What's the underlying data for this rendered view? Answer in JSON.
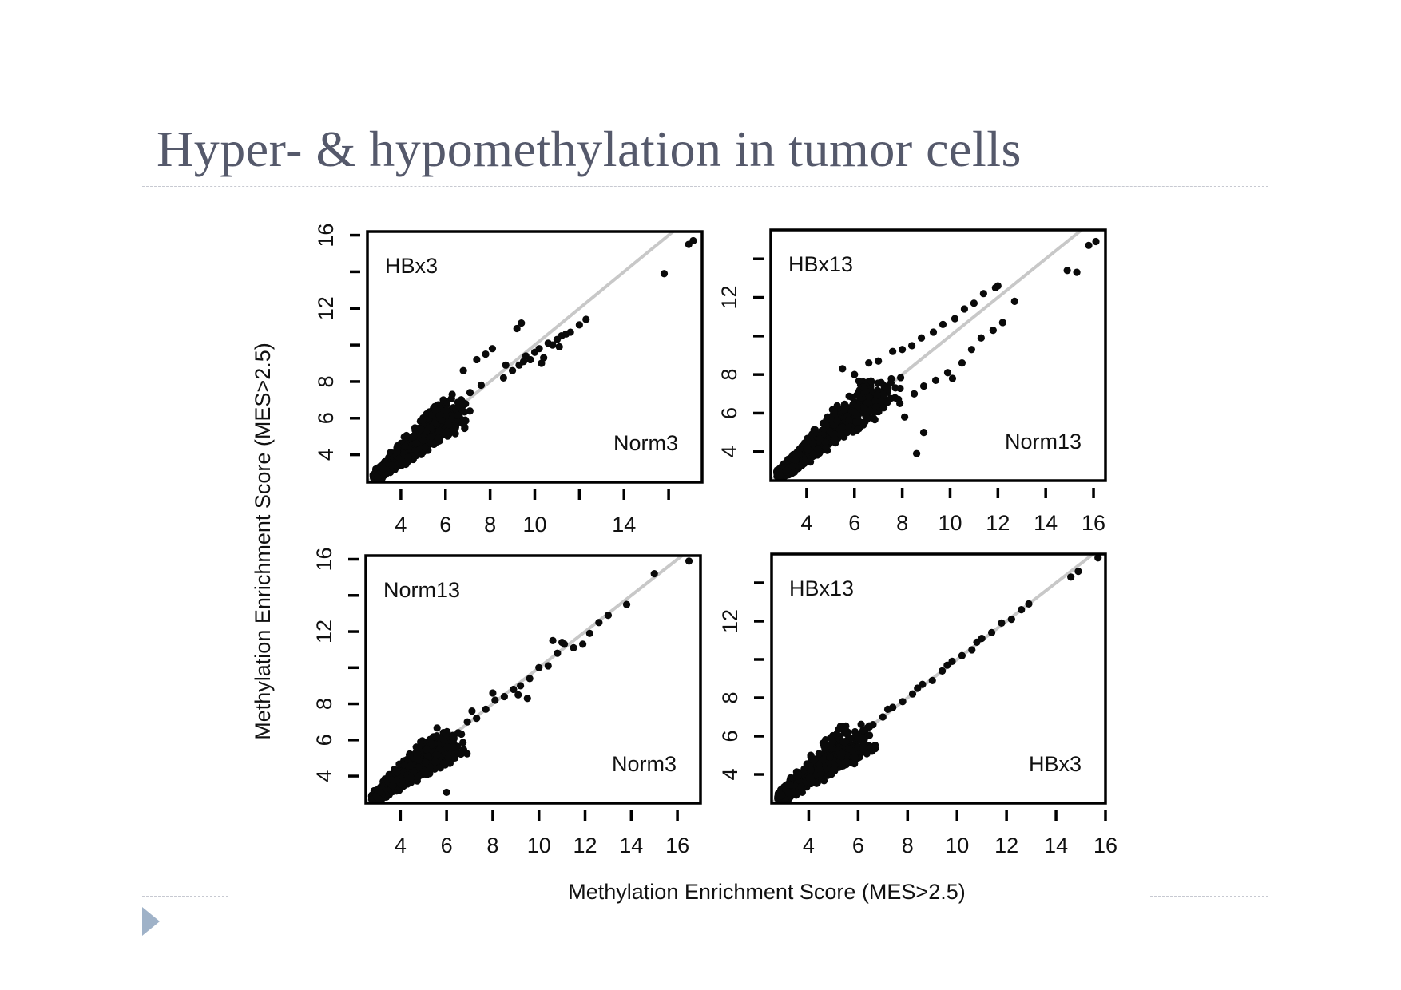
{
  "slide": {
    "title": "Hyper- & hypomethylation in tumor cells",
    "accent_color": "#9fb2c8",
    "title_color": "#55596b"
  },
  "chart_data": [
    {
      "type": "scatter",
      "panel": "top-left",
      "y_label": "HBx3",
      "x_label": "Norm3",
      "xlim": [
        2.5,
        17.5
      ],
      "ylim": [
        2.5,
        16.2
      ],
      "x_ticks": [
        4,
        6,
        8,
        10,
        12,
        14,
        16
      ],
      "x_tick_labels": [
        "4",
        "6",
        "8",
        "10",
        "14"
      ],
      "x_tick_labels_at": [
        4,
        6,
        8,
        10,
        14
      ],
      "y_ticks": [
        4,
        6,
        8,
        10,
        12,
        14,
        16
      ],
      "y_tick_labels": [
        "4",
        "6",
        "8",
        "12",
        "16"
      ],
      "y_tick_labels_at": [
        4,
        6,
        8,
        12,
        16
      ],
      "diagonal": true,
      "cluster": {
        "x_range": [
          2.8,
          6.5
        ],
        "y_range": [
          2.7,
          6.5
        ]
      },
      "points": [
        [
          7.4,
          9.2
        ],
        [
          6.8,
          8.6
        ],
        [
          7.8,
          9.5
        ],
        [
          8.1,
          9.8
        ],
        [
          8.6,
          8.2
        ],
        [
          9.0,
          8.6
        ],
        [
          9.3,
          8.9
        ],
        [
          9.5,
          9.1
        ],
        [
          9.6,
          9.4
        ],
        [
          9.8,
          9.2
        ],
        [
          10.0,
          9.6
        ],
        [
          10.2,
          9.8
        ],
        [
          10.4,
          9.3
        ],
        [
          10.6,
          10.1
        ],
        [
          10.8,
          10.0
        ],
        [
          11.0,
          10.3
        ],
        [
          11.2,
          10.5
        ],
        [
          11.4,
          10.6
        ],
        [
          11.6,
          10.7
        ],
        [
          12.0,
          11.1
        ],
        [
          12.3,
          11.4
        ],
        [
          9.2,
          10.9
        ],
        [
          9.4,
          11.2
        ],
        [
          8.7,
          8.9
        ],
        [
          10.3,
          9.0
        ],
        [
          11.1,
          9.9
        ],
        [
          15.8,
          13.9
        ],
        [
          16.9,
          15.5
        ],
        [
          17.1,
          15.7
        ],
        [
          6.3,
          7.3
        ],
        [
          5.9,
          7.0
        ],
        [
          7.1,
          7.4
        ],
        [
          7.6,
          7.8
        ]
      ]
    },
    {
      "type": "scatter",
      "panel": "top-right",
      "y_label": "HBx13",
      "x_label": "Norm13",
      "xlim": [
        2.5,
        16.5
      ],
      "ylim": [
        2.5,
        15.5
      ],
      "x_ticks": [
        4,
        6,
        8,
        10,
        12,
        14,
        16
      ],
      "x_tick_labels": [
        "4",
        "6",
        "8",
        "10",
        "12",
        "14",
        "16"
      ],
      "x_tick_labels_at": [
        4,
        6,
        8,
        10,
        12,
        14,
        16
      ],
      "y_ticks": [
        4,
        6,
        8,
        10,
        12,
        14
      ],
      "y_tick_labels": [
        "4",
        "6",
        "8",
        "12"
      ],
      "y_tick_labels_at": [
        4,
        6,
        8,
        12
      ],
      "diagonal": true,
      "cluster": {
        "x_range": [
          2.8,
          7.2
        ],
        "y_range": [
          2.7,
          7.2
        ]
      },
      "points": [
        [
          5.5,
          8.3
        ],
        [
          6.0,
          8.0
        ],
        [
          6.6,
          8.6
        ],
        [
          7.0,
          8.7
        ],
        [
          7.6,
          9.2
        ],
        [
          8.0,
          9.3
        ],
        [
          8.4,
          9.5
        ],
        [
          8.8,
          9.9
        ],
        [
          9.3,
          10.2
        ],
        [
          9.7,
          10.6
        ],
        [
          10.2,
          10.9
        ],
        [
          10.6,
          11.4
        ],
        [
          11.0,
          11.7
        ],
        [
          11.4,
          12.2
        ],
        [
          11.9,
          12.5
        ],
        [
          12.0,
          12.6
        ],
        [
          7.9,
          6.5
        ],
        [
          8.5,
          7.0
        ],
        [
          8.9,
          7.4
        ],
        [
          9.4,
          7.7
        ],
        [
          9.9,
          8.1
        ],
        [
          10.5,
          8.6
        ],
        [
          10.9,
          9.3
        ],
        [
          11.3,
          9.9
        ],
        [
          11.8,
          10.3
        ],
        [
          12.2,
          10.7
        ],
        [
          12.7,
          11.8
        ],
        [
          10.1,
          7.8
        ],
        [
          8.1,
          5.8
        ],
        [
          8.9,
          5.0
        ],
        [
          8.6,
          3.9
        ],
        [
          14.9,
          13.4
        ],
        [
          15.3,
          13.3
        ],
        [
          15.8,
          14.7
        ],
        [
          16.1,
          14.9
        ]
      ]
    },
    {
      "type": "scatter",
      "panel": "bottom-left",
      "y_label": "Norm13",
      "x_label": "Norm3",
      "xlim": [
        2.5,
        17.0
      ],
      "ylim": [
        2.5,
        16.2
      ],
      "x_ticks": [
        4,
        6,
        8,
        10,
        12,
        14,
        16
      ],
      "x_tick_labels": [
        "4",
        "6",
        "8",
        "10",
        "12",
        "14",
        "16"
      ],
      "x_tick_labels_at": [
        4,
        6,
        8,
        10,
        12,
        14,
        16
      ],
      "y_ticks": [
        4,
        6,
        8,
        10,
        12,
        14,
        16
      ],
      "y_tick_labels": [
        "4",
        "6",
        "8",
        "12",
        "16"
      ],
      "y_tick_labels_at": [
        4,
        6,
        8,
        12,
        16
      ],
      "diagonal": true,
      "cluster": {
        "x_range": [
          2.8,
          6.2
        ],
        "y_range": [
          2.7,
          6.0
        ]
      },
      "points": [
        [
          6.5,
          6.4
        ],
        [
          6.9,
          7.0
        ],
        [
          7.3,
          7.2
        ],
        [
          7.7,
          7.7
        ],
        [
          8.1,
          8.2
        ],
        [
          8.5,
          8.4
        ],
        [
          8.9,
          8.8
        ],
        [
          9.2,
          9.0
        ],
        [
          9.6,
          9.4
        ],
        [
          10.0,
          10.0
        ],
        [
          10.4,
          10.1
        ],
        [
          10.8,
          10.8
        ],
        [
          11.1,
          11.3
        ],
        [
          11.5,
          11.1
        ],
        [
          11.9,
          11.3
        ],
        [
          12.2,
          11.9
        ],
        [
          12.6,
          12.5
        ],
        [
          13.0,
          12.9
        ],
        [
          7.1,
          7.6
        ],
        [
          8.0,
          8.6
        ],
        [
          9.1,
          8.5
        ],
        [
          9.5,
          8.3
        ],
        [
          10.6,
          11.5
        ],
        [
          11.0,
          11.4
        ],
        [
          13.8,
          13.5
        ],
        [
          15.0,
          15.2
        ],
        [
          16.5,
          15.9
        ],
        [
          6.0,
          3.1
        ],
        [
          5.5,
          4.8
        ]
      ]
    },
    {
      "type": "scatter",
      "panel": "bottom-right",
      "y_label": "HBx13",
      "x_label": "HBx3",
      "xlim": [
        2.5,
        16.0
      ],
      "ylim": [
        2.5,
        15.5
      ],
      "x_ticks": [
        4,
        6,
        8,
        10,
        12,
        14,
        16
      ],
      "x_tick_labels": [
        "4",
        "6",
        "8",
        "10",
        "12",
        "14",
        "16"
      ],
      "x_tick_labels_at": [
        4,
        6,
        8,
        10,
        12,
        14,
        16
      ],
      "y_ticks": [
        4,
        6,
        8,
        10,
        12,
        14
      ],
      "y_tick_labels": [
        "4",
        "6",
        "8",
        "12"
      ],
      "y_tick_labels_at": [
        4,
        6,
        8,
        12
      ],
      "diagonal": true,
      "cluster": {
        "x_range": [
          2.8,
          6.0
        ],
        "y_range": [
          2.7,
          5.9
        ]
      },
      "points": [
        [
          6.2,
          6.3
        ],
        [
          6.6,
          6.6
        ],
        [
          7.0,
          7.0
        ],
        [
          7.4,
          7.5
        ],
        [
          7.8,
          7.8
        ],
        [
          8.2,
          8.2
        ],
        [
          8.6,
          8.7
        ],
        [
          9.0,
          8.9
        ],
        [
          9.4,
          9.4
        ],
        [
          9.8,
          9.9
        ],
        [
          10.2,
          10.2
        ],
        [
          10.6,
          10.5
        ],
        [
          11.0,
          11.1
        ],
        [
          11.4,
          11.4
        ],
        [
          11.8,
          11.9
        ],
        [
          12.2,
          12.1
        ],
        [
          12.6,
          12.6
        ],
        [
          12.9,
          12.9
        ],
        [
          7.2,
          7.4
        ],
        [
          8.4,
          8.5
        ],
        [
          9.6,
          9.7
        ],
        [
          10.8,
          10.9
        ],
        [
          14.6,
          14.3
        ],
        [
          14.9,
          14.6
        ],
        [
          15.7,
          15.3
        ]
      ]
    }
  ],
  "figure": {
    "shared_x_label": "Methylation Enrichment Score (MES>2.5)",
    "shared_y_label": "Methylation Enrichment Score (MES>2.5)"
  }
}
